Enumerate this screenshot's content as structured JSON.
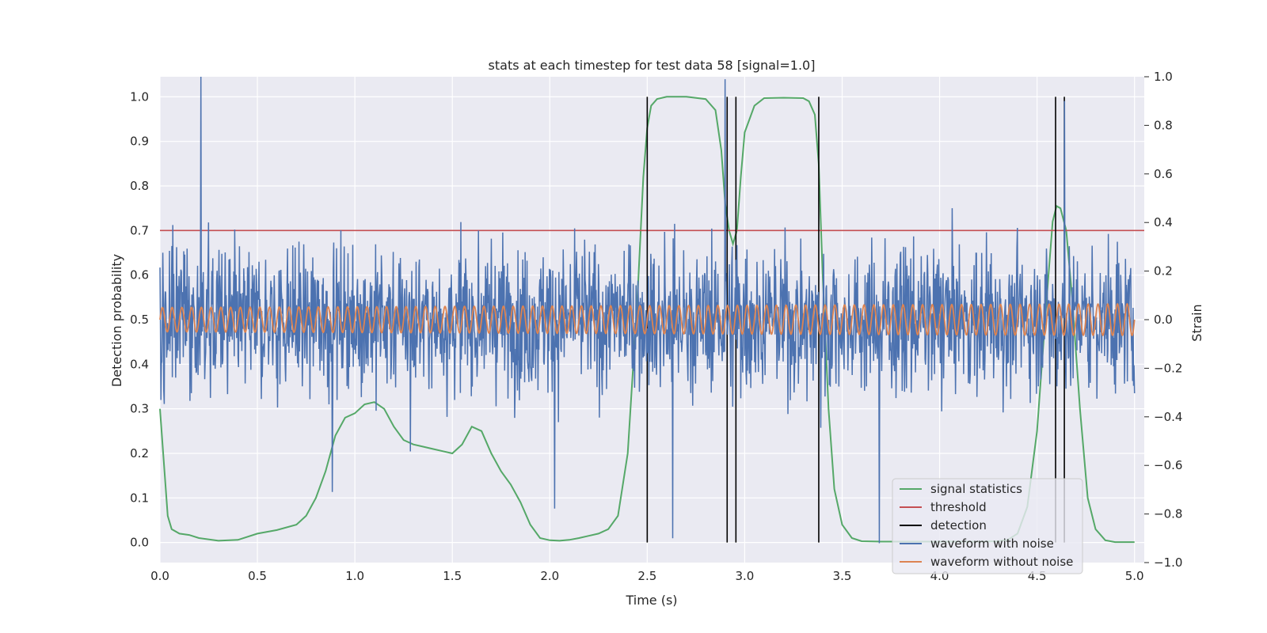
{
  "chart_data": {
    "type": "line",
    "title": "stats at each timestep for test data 58 [signal=1.0]",
    "xlabel": "Time (s)",
    "ylabel_left": "Detection probability",
    "ylabel_right": "Strain",
    "xlim": [
      0.0,
      5.05
    ],
    "ylim_left": [
      -0.045,
      1.045
    ],
    "ylim_right": [
      -1.0,
      1.0
    ],
    "x_ticks": [
      0.0,
      0.5,
      1.0,
      1.5,
      2.0,
      2.5,
      3.0,
      3.5,
      4.0,
      4.5,
      5.0
    ],
    "x_tick_labels": [
      "0.0",
      "0.5",
      "1.0",
      "1.5",
      "2.0",
      "2.5",
      "3.0",
      "3.5",
      "4.0",
      "4.5",
      "5.0"
    ],
    "y_left_ticks": [
      0.0,
      0.1,
      0.2,
      0.3,
      0.4,
      0.5,
      0.6,
      0.7,
      0.8,
      0.9,
      1.0
    ],
    "y_left_tick_labels": [
      "0.0",
      "0.1",
      "0.2",
      "0.3",
      "0.4",
      "0.5",
      "0.6",
      "0.7",
      "0.8",
      "0.9",
      "1.0"
    ],
    "y_right_ticks": [
      -1.0,
      -0.8,
      -0.6,
      -0.4,
      -0.2,
      0.0,
      0.2,
      0.4,
      0.6,
      0.8,
      1.0
    ],
    "y_right_tick_labels": [
      "−1.0",
      "−0.8",
      "−0.6",
      "−0.4",
      "−0.2",
      "0.0",
      "0.2",
      "0.4",
      "0.6",
      "0.8",
      "1.0"
    ],
    "grid": true,
    "legend_position": "bottom-right",
    "colors": {
      "signal_statistics": "#55a868",
      "threshold": "#c44e52",
      "detection": "#000000",
      "waveform_with_noise": "#4c72b0",
      "waveform_without_noise": "#dd8452",
      "plot_background": "#eaeaf2",
      "grid": "#ffffff"
    },
    "series": [
      {
        "name": "signal statistics",
        "axis": "left",
        "x": [
          0.0,
          0.02,
          0.04,
          0.06,
          0.1,
          0.15,
          0.2,
          0.3,
          0.4,
          0.5,
          0.6,
          0.7,
          0.75,
          0.8,
          0.85,
          0.9,
          0.95,
          1.0,
          1.05,
          1.1,
          1.15,
          1.2,
          1.25,
          1.3,
          1.35,
          1.4,
          1.45,
          1.5,
          1.55,
          1.6,
          1.65,
          1.7,
          1.75,
          1.8,
          1.85,
          1.9,
          1.95,
          2.0,
          2.05,
          2.1,
          2.15,
          2.2,
          2.25,
          2.3,
          2.35,
          2.4,
          2.45,
          2.48,
          2.5,
          2.52,
          2.55,
          2.6,
          2.7,
          2.8,
          2.85,
          2.88,
          2.9,
          2.92,
          2.94,
          2.96,
          2.98,
          3.0,
          3.05,
          3.1,
          3.2,
          3.3,
          3.33,
          3.36,
          3.38,
          3.4,
          3.43,
          3.46,
          3.5,
          3.55,
          3.6,
          3.7,
          3.8,
          3.9,
          4.0,
          4.1,
          4.2,
          4.3,
          4.35,
          4.4,
          4.45,
          4.5,
          4.55,
          4.58,
          4.6,
          4.62,
          4.65,
          4.68,
          4.72,
          4.76,
          4.8,
          4.85,
          4.9,
          4.95,
          5.0
        ],
        "values": [
          0.3,
          0.18,
          0.06,
          0.03,
          0.02,
          0.017,
          0.01,
          0.004,
          0.006,
          0.02,
          0.028,
          0.04,
          0.06,
          0.1,
          0.16,
          0.24,
          0.28,
          0.29,
          0.31,
          0.315,
          0.3,
          0.26,
          0.23,
          0.22,
          0.215,
          0.21,
          0.205,
          0.2,
          0.22,
          0.26,
          0.25,
          0.2,
          0.16,
          0.13,
          0.09,
          0.04,
          0.01,
          0.005,
          0.004,
          0.006,
          0.01,
          0.015,
          0.02,
          0.03,
          0.06,
          0.2,
          0.55,
          0.82,
          0.93,
          0.98,
          0.995,
          1.0,
          1.0,
          0.995,
          0.97,
          0.88,
          0.76,
          0.7,
          0.67,
          0.7,
          0.82,
          0.92,
          0.98,
          0.997,
          0.998,
          0.997,
          0.99,
          0.96,
          0.85,
          0.6,
          0.3,
          0.12,
          0.04,
          0.01,
          0.003,
          0.002,
          0.002,
          0.002,
          0.002,
          0.002,
          0.002,
          0.003,
          0.006,
          0.02,
          0.08,
          0.25,
          0.55,
          0.72,
          0.755,
          0.75,
          0.7,
          0.55,
          0.3,
          0.1,
          0.03,
          0.005,
          0.001,
          0.001,
          0.001
        ]
      },
      {
        "name": "threshold",
        "axis": "left",
        "x": [
          0.0,
          5.05
        ],
        "values": [
          0.7,
          0.7
        ]
      },
      {
        "name": "detection",
        "axis": "left",
        "type": "vlines",
        "x": [
          2.5,
          2.91,
          2.955,
          3.38,
          4.595,
          4.64
        ],
        "ymin": 0.0,
        "ymax": 1.0
      },
      {
        "name": "waveform with noise",
        "axis": "right",
        "style": "noise",
        "n_samples": 2048,
        "amplitude_range": [
          -0.92,
          1.0
        ],
        "peaks": [
          {
            "x": 0.21,
            "value": 1.0
          },
          {
            "x": 2.9,
            "value": 0.99
          },
          {
            "x": 4.64,
            "value": 0.9
          },
          {
            "x": 2.63,
            "value": -0.9
          },
          {
            "x": 3.69,
            "value": -0.92
          }
        ]
      },
      {
        "name": "waveform without noise",
        "axis": "right",
        "style": "sinusoid",
        "cycles": 100,
        "amplitude_start": 0.05,
        "amplitude_end": 0.065,
        "offset": 0.0
      }
    ],
    "legend": [
      "signal statistics",
      "threshold",
      "detection",
      "waveform with noise",
      "waveform without noise"
    ]
  }
}
